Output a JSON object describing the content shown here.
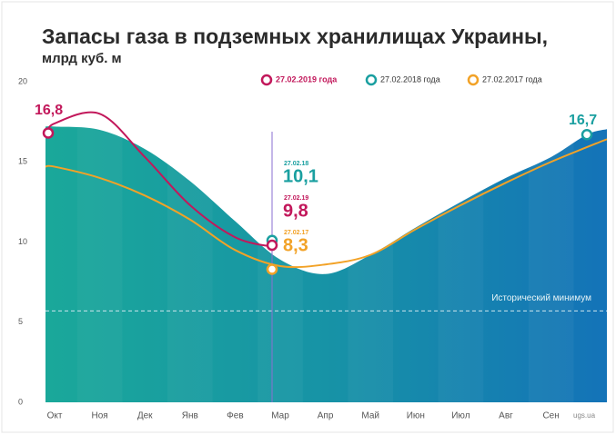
{
  "chart_data": {
    "type": "line",
    "title": "Запасы газа в подземных хранилищах Украины,",
    "subtitle": "млрд куб. м",
    "source": "ugs.ua",
    "categories": [
      "Окт",
      "Ноя",
      "Дек",
      "Янв",
      "Фев",
      "Мар",
      "Апр",
      "Май",
      "Июн",
      "Июл",
      "Авг",
      "Сен"
    ],
    "ylim": [
      0,
      20
    ],
    "yticks": [
      0,
      5,
      10,
      15,
      20
    ],
    "series": [
      {
        "name": "27.02.2019 года",
        "color": "#c2185b",
        "style": "line",
        "values": [
          17.4,
          18.0,
          15.3,
          12.3,
          10.3,
          9.7,
          null,
          null,
          null,
          null,
          null,
          null
        ]
      },
      {
        "name": "27.02.2018 года",
        "color": "#1a9fa0",
        "style": "area",
        "values": [
          17.2,
          17.0,
          15.8,
          13.8,
          11.3,
          8.9,
          8.0,
          9.2,
          10.9,
          12.5,
          14.0,
          15.3
        ]
      },
      {
        "name": "27.02.2017 года",
        "color": "#f2a227",
        "style": "line",
        "values": [
          14.7,
          14.0,
          12.9,
          11.4,
          9.5,
          8.5,
          8.6,
          9.2,
          10.8,
          12.3,
          13.7,
          15.0
        ]
      }
    ],
    "endpoint_labels": [
      {
        "value": 16.8,
        "label": "16,8"
      },
      {
        "value": 16.7,
        "label": "16,7"
      }
    ],
    "march_labels": [
      {
        "date": "27.02.18",
        "value": 10.1,
        "label": "10,1"
      },
      {
        "date": "27.02.19",
        "value": 9.8,
        "label": "9,8"
      },
      {
        "date": "27.02.17",
        "value": 8.3,
        "label": "8,3"
      }
    ],
    "reference_line": {
      "value": 5.7,
      "label": "Исторический минимум"
    }
  }
}
